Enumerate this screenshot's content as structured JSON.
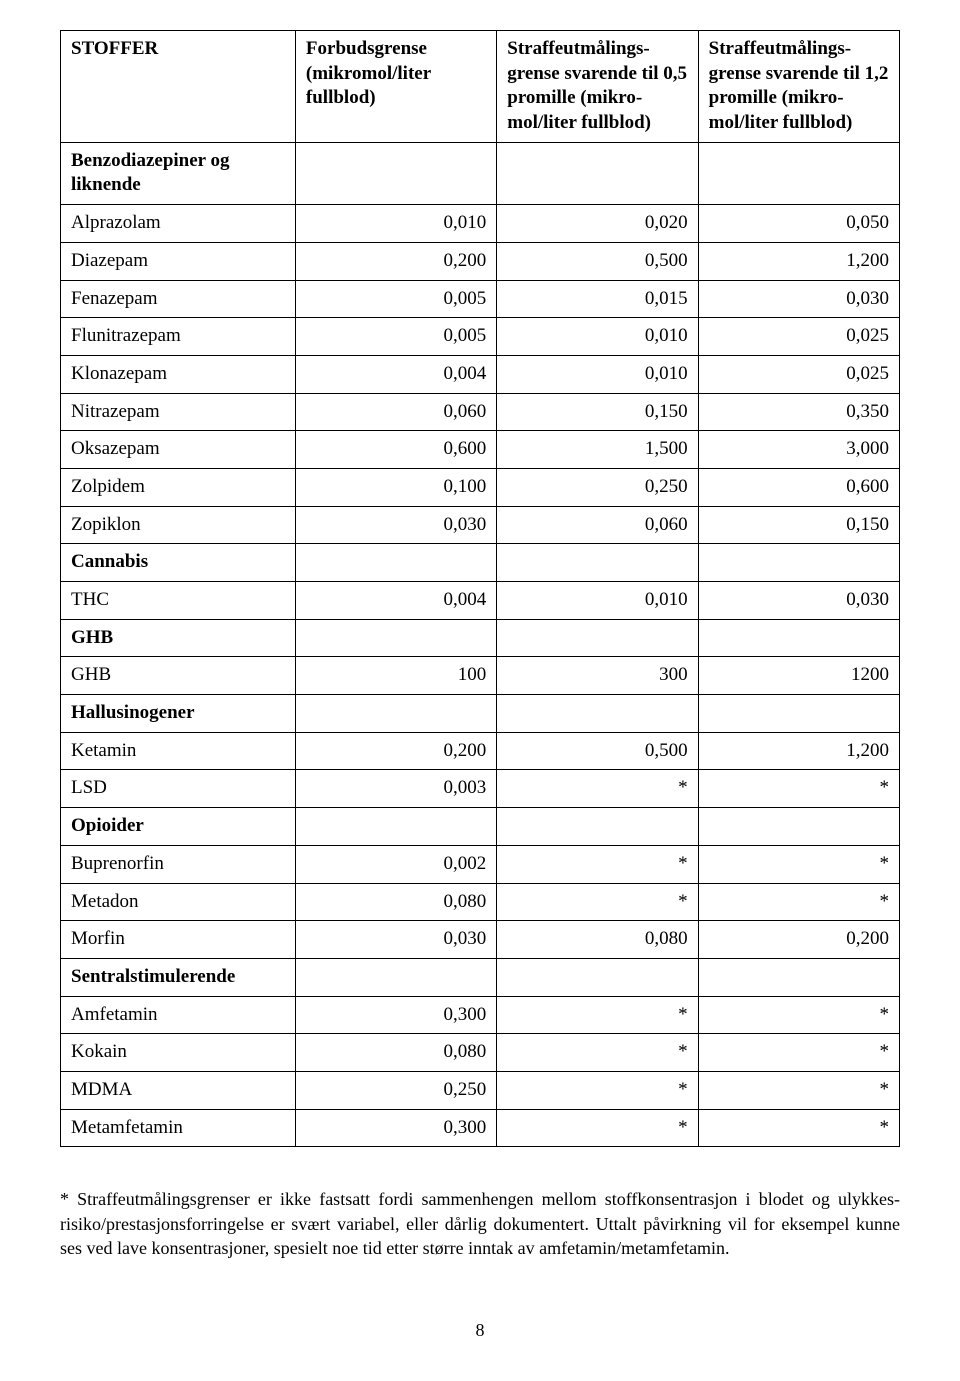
{
  "table": {
    "columns": [
      "STOFFER",
      "Forbudsgrense (mikromol/liter fullblod)",
      "Straffeutmålings-grense svarende til 0,5 promille (mikro-mol/liter fullblod)",
      "Straffeutmålings-grense svarende til 1,2 promille (mikro-mol/liter fullblod)"
    ],
    "sections": [
      {
        "title": "Benzodiazepiner og liknende",
        "rows": [
          {
            "name": "Alprazolam",
            "v": [
              "0,010",
              "0,020",
              "0,050"
            ]
          },
          {
            "name": "Diazepam",
            "v": [
              "0,200",
              "0,500",
              "1,200"
            ]
          },
          {
            "name": "Fenazepam",
            "v": [
              "0,005",
              "0,015",
              "0,030"
            ]
          },
          {
            "name": "Flunitrazepam",
            "v": [
              "0,005",
              "0,010",
              "0,025"
            ]
          },
          {
            "name": "Klonazepam",
            "v": [
              "0,004",
              "0,010",
              "0,025"
            ]
          },
          {
            "name": "Nitrazepam",
            "v": [
              "0,060",
              "0,150",
              "0,350"
            ]
          },
          {
            "name": "Oksazepam",
            "v": [
              "0,600",
              "1,500",
              "3,000"
            ]
          },
          {
            "name": "Zolpidem",
            "v": [
              "0,100",
              "0,250",
              "0,600"
            ]
          },
          {
            "name": "Zopiklon",
            "v": [
              "0,030",
              "0,060",
              "0,150"
            ]
          }
        ]
      },
      {
        "title": "Cannabis",
        "rows": [
          {
            "name": "THC",
            "v": [
              "0,004",
              "0,010",
              "0,030"
            ]
          }
        ]
      },
      {
        "title": "GHB",
        "rows": [
          {
            "name": "GHB",
            "v": [
              "100",
              "300",
              "1200"
            ]
          }
        ]
      },
      {
        "title": "Hallusinogener",
        "rows": [
          {
            "name": "Ketamin",
            "v": [
              "0,200",
              "0,500",
              "1,200"
            ]
          },
          {
            "name": "LSD",
            "v": [
              "0,003",
              "*",
              "*"
            ]
          }
        ]
      },
      {
        "title": "Opioider",
        "rows": [
          {
            "name": "Buprenorfin",
            "v": [
              "0,002",
              "*",
              "*"
            ]
          },
          {
            "name": "Metadon",
            "v": [
              "0,080",
              "*",
              "*"
            ]
          },
          {
            "name": "Morfin",
            "v": [
              "0,030",
              "0,080",
              "0,200"
            ]
          }
        ]
      },
      {
        "title": "Sentralstimulerende",
        "rows": [
          {
            "name": "Amfetamin",
            "v": [
              "0,300",
              "*",
              "*"
            ]
          },
          {
            "name": "Kokain",
            "v": [
              "0,080",
              "*",
              "*"
            ]
          },
          {
            "name": "MDMA",
            "v": [
              "0,250",
              "*",
              "*"
            ]
          },
          {
            "name": "Metamfetamin",
            "v": [
              "0,300",
              "*",
              "*"
            ]
          }
        ]
      }
    ]
  },
  "footnote": "* Straffeutmålingsgrenser er ikke fastsatt fordi sammenhengen mellom stoffkonsentrasjon i blodet og ulykkes-risiko/prestasjonsforringelse er svært variabel, eller dårlig dokumentert. Uttalt påvirkning vil for eksempel kunne ses ved lave konsentrasjoner, spesielt noe tid etter større inntak av amfetamin/metamfetamin.",
  "page_number": "8"
}
